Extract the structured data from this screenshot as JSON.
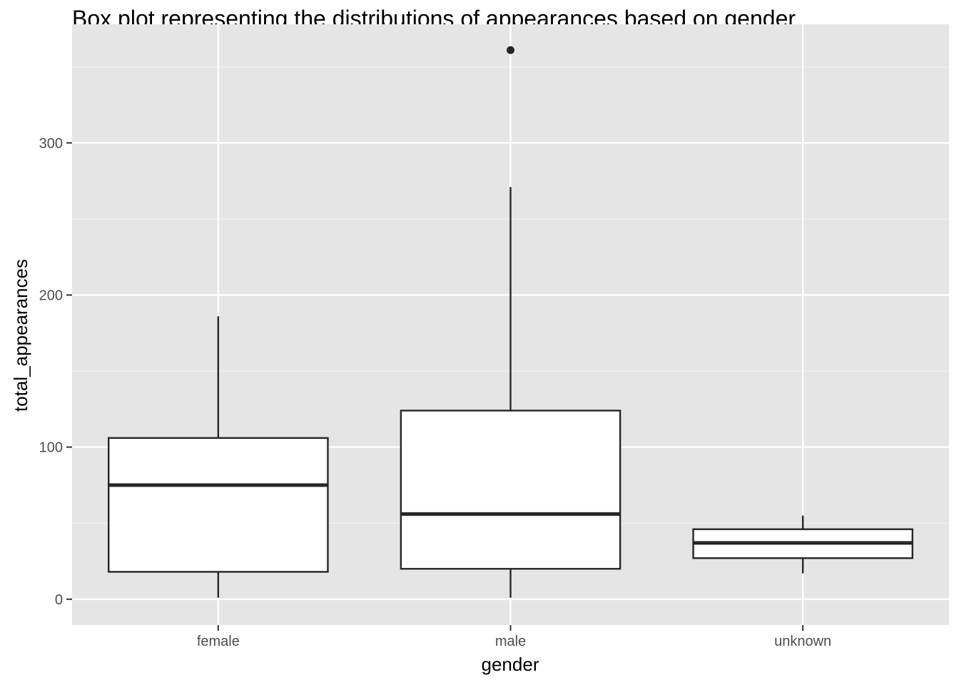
{
  "chart_data": {
    "type": "box",
    "title": "Box plot representing the distributions of appearances based on gender",
    "xlabel": "gender",
    "ylabel": "total_appearances",
    "ylim": [
      -17,
      378
    ],
    "y_ticks": [
      0,
      100,
      200,
      300
    ],
    "grid": true,
    "categories": [
      "female",
      "male",
      "unknown"
    ],
    "boxes": [
      {
        "category": "female",
        "min": 1,
        "q1": 18,
        "median": 75,
        "q3": 106,
        "max": 186,
        "outliers": []
      },
      {
        "category": "male",
        "min": 1,
        "q1": 20,
        "median": 56,
        "q3": 124,
        "max": 271,
        "outliers": [
          361
        ]
      },
      {
        "category": "unknown",
        "min": 17,
        "q1": 27,
        "median": 37,
        "q3": 46,
        "max": 55,
        "outliers": []
      }
    ],
    "colors": {
      "panel_bg": "#e5e5e5",
      "grid_major": "#ffffff",
      "grid_minor": "#f2f2f2",
      "box_fill": "#ffffff",
      "box_line": "#262626",
      "tick_text": "#4d4d4d",
      "tick_mark": "#333333"
    }
  }
}
